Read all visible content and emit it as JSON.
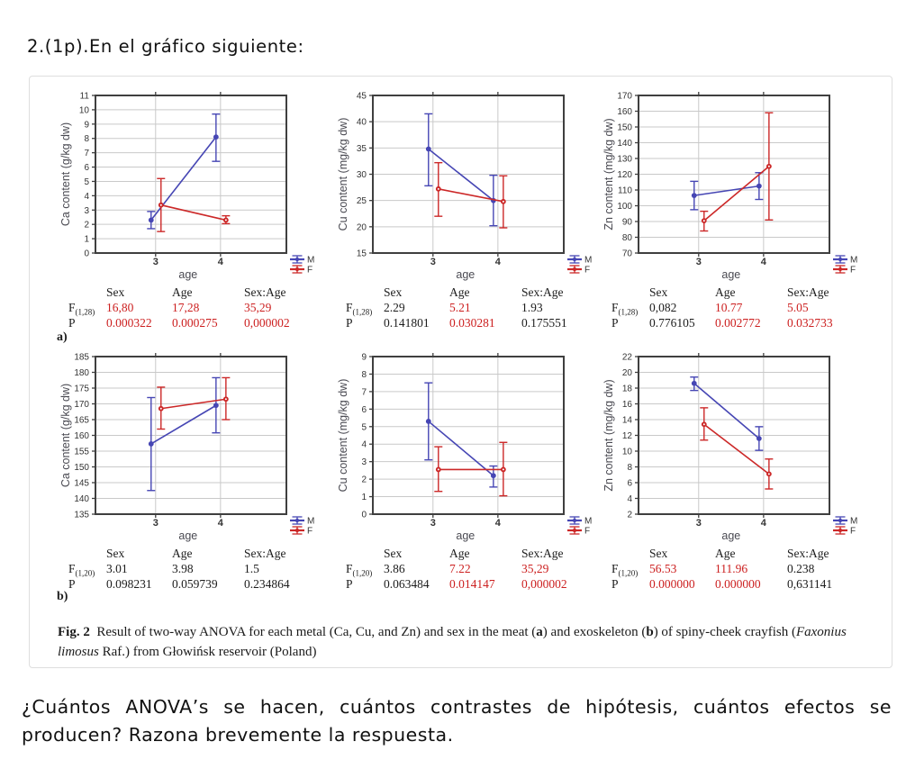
{
  "heading": "2.(1p).En el gráfico siguiente:",
  "figure": {
    "panel_a": "a)",
    "panel_b": "b)",
    "legend": {
      "male_label": "M",
      "female_label": "F"
    },
    "colors": {
      "male": "#4646b4",
      "female": "#cc2828",
      "grid": "#c9c9c9",
      "axis_box": "#3f3f3f",
      "tick_text": "#333333",
      "axis_title": "#4a4a52",
      "significant_red": "#cc1f1f"
    },
    "caption_segments": [
      {
        "t": "Fig. 2",
        "b": true
      },
      {
        "t": "  Result of two-way ANOVA for each metal (Ca, Cu, and Zn) and sex in the meat ("
      },
      {
        "t": "a",
        "b": true
      },
      {
        "t": ") and exoskeleton ("
      },
      {
        "t": "b",
        "b": true
      },
      {
        "t": ") of spiny-cheek crayfish ("
      },
      {
        "t": "Faxonius limosus",
        "i": true
      },
      {
        "t": " Raf.) from Głowińsk reservoir (Poland)"
      }
    ]
  },
  "question": {
    "line1": "¿Cuántos ANOVA’s se hacen, cuántos contrastes de hipótesis, cuántos efectos se",
    "line2": "producen? Razona brevemente la respuesta."
  },
  "chart_data": [
    {
      "type": "line",
      "panel": "a",
      "id": "ca-meat",
      "ylabel": "Ca content (g/kg dw)",
      "xlabel": "age",
      "ylim": [
        0,
        11
      ],
      "ystep": 1,
      "xticks": [
        "3",
        "4"
      ],
      "series": [
        {
          "name": "M",
          "points": [
            {
              "x": 3,
              "y": 2.3,
              "lo": 1.7,
              "hi": 2.9
            },
            {
              "x": 4,
              "y": 8.1,
              "lo": 6.4,
              "hi": 9.7
            }
          ]
        },
        {
          "name": "F",
          "points": [
            {
              "x": 3,
              "y": 3.35,
              "lo": 1.5,
              "hi": 5.2
            },
            {
              "x": 4,
              "y": 2.3,
              "lo": 2.05,
              "hi": 2.6
            }
          ]
        }
      ],
      "stats": {
        "flabel": "F",
        "fsub": "(1,28)",
        "plabel": "P",
        "cols": [
          {
            "header": "Sex",
            "f": "16,80",
            "fred": true,
            "p": "0.000322",
            "pred": true
          },
          {
            "header": "Age",
            "f": "17,28",
            "fred": true,
            "p": "0.000275",
            "pred": true
          },
          {
            "header": "Sex:Age",
            "f": "35,29",
            "fred": true,
            "p": "0,000002",
            "pred": true
          }
        ]
      }
    },
    {
      "type": "line",
      "panel": "a",
      "id": "cu-meat",
      "ylabel": "Cu content (mg/kg dw)",
      "xlabel": "age",
      "ylim": [
        15,
        45
      ],
      "ystep": 5,
      "xticks": [
        "3",
        "4"
      ],
      "series": [
        {
          "name": "M",
          "points": [
            {
              "x": 3,
              "y": 34.8,
              "lo": 27.8,
              "hi": 41.5
            },
            {
              "x": 4,
              "y": 25.0,
              "lo": 20.2,
              "hi": 29.8
            }
          ]
        },
        {
          "name": "F",
          "points": [
            {
              "x": 3,
              "y": 27.2,
              "lo": 22.0,
              "hi": 32.2
            },
            {
              "x": 4,
              "y": 24.8,
              "lo": 19.8,
              "hi": 29.7
            }
          ]
        }
      ],
      "stats": {
        "flabel": "F",
        "fsub": "(1,28)",
        "plabel": "P",
        "cols": [
          {
            "header": "Sex",
            "f": "2.29",
            "fred": false,
            "p": "0.141801",
            "pred": false
          },
          {
            "header": "Age",
            "f": "5.21",
            "fred": true,
            "p": "0.030281",
            "pred": true
          },
          {
            "header": "Sex:Age",
            "f": "1.93",
            "fred": false,
            "p": "0.175551",
            "pred": false
          }
        ]
      }
    },
    {
      "type": "line",
      "panel": "a",
      "id": "zn-meat",
      "ylabel": "Zn content (mg/kg dw)",
      "xlabel": "age",
      "ylim": [
        70,
        170
      ],
      "ystep": 10,
      "xticks": [
        "3",
        "4"
      ],
      "series": [
        {
          "name": "M",
          "points": [
            {
              "x": 3,
              "y": 106.5,
              "lo": 97.5,
              "hi": 115.5
            },
            {
              "x": 4,
              "y": 112.5,
              "lo": 104,
              "hi": 121
            }
          ]
        },
        {
          "name": "F",
          "points": [
            {
              "x": 3,
              "y": 90.5,
              "lo": 84,
              "hi": 96.5
            },
            {
              "x": 4,
              "y": 125,
              "lo": 91,
              "hi": 159
            }
          ]
        }
      ],
      "stats": {
        "flabel": "F",
        "fsub": "(1,28)",
        "plabel": "P",
        "cols": [
          {
            "header": "Sex",
            "f": "0,082",
            "fred": false,
            "p": "0.776105",
            "pred": false
          },
          {
            "header": "Age",
            "f": "10.77",
            "fred": true,
            "p": "0.002772",
            "pred": true
          },
          {
            "header": "Sex:Age",
            "f": "5.05",
            "fred": true,
            "p": "0.032733",
            "pred": true
          }
        ]
      }
    },
    {
      "type": "line",
      "panel": "b",
      "id": "ca-exoskeleton",
      "ylabel": "Ca content (g/kg dw)",
      "xlabel": "age",
      "ylim": [
        135,
        185
      ],
      "ystep": 5,
      "xticks": [
        "3",
        "4"
      ],
      "series": [
        {
          "name": "M",
          "points": [
            {
              "x": 3,
              "y": 157.3,
              "lo": 142.5,
              "hi": 172
            },
            {
              "x": 4,
              "y": 169.5,
              "lo": 160.8,
              "hi": 178.3
            }
          ]
        },
        {
          "name": "F",
          "points": [
            {
              "x": 3,
              "y": 168.5,
              "lo": 162,
              "hi": 175.3
            },
            {
              "x": 4,
              "y": 171.5,
              "lo": 165,
              "hi": 178.3
            }
          ]
        }
      ],
      "stats": {
        "flabel": "F",
        "fsub": "(1,20)",
        "plabel": "P",
        "cols": [
          {
            "header": "Sex",
            "f": "3.01",
            "fred": false,
            "p": "0.098231",
            "pred": false
          },
          {
            "header": "Age",
            "f": "3.98",
            "fred": false,
            "p": "0.059739",
            "pred": false
          },
          {
            "header": "Sex:Age",
            "f": "1.5",
            "fred": false,
            "p": "0.234864",
            "pred": false
          }
        ]
      }
    },
    {
      "type": "line",
      "panel": "b",
      "id": "cu-exoskeleton",
      "ylabel": "Cu content (mg/kg dw)",
      "xlabel": "age",
      "ylim": [
        0,
        9
      ],
      "ystep": 1,
      "xticks": [
        "3",
        "4"
      ],
      "series": [
        {
          "name": "M",
          "points": [
            {
              "x": 3,
              "y": 5.3,
              "lo": 3.1,
              "hi": 7.5
            },
            {
              "x": 4,
              "y": 2.2,
              "lo": 1.55,
              "hi": 2.75
            }
          ]
        },
        {
          "name": "F",
          "points": [
            {
              "x": 3,
              "y": 2.55,
              "lo": 1.3,
              "hi": 3.85
            },
            {
              "x": 4,
              "y": 2.55,
              "lo": 1.05,
              "hi": 4.1
            }
          ]
        }
      ],
      "stats": {
        "flabel": "F",
        "fsub": "(1,20)",
        "plabel": "P",
        "cols": [
          {
            "header": "Sex",
            "f": "3.86",
            "fred": false,
            "p": "0.063484",
            "pred": false
          },
          {
            "header": "Age",
            "f": "7.22",
            "fred": true,
            "p": "0.014147",
            "pred": true
          },
          {
            "header": "Sex:Age",
            "f": "35,29",
            "fred": true,
            "p": "0,000002",
            "pred": true
          }
        ]
      }
    },
    {
      "type": "line",
      "panel": "b",
      "id": "zn-exoskeleton",
      "ylabel": "Zn content (mg/kg dw)",
      "xlabel": "age",
      "ylim": [
        2,
        22
      ],
      "ystep": 2,
      "xticks": [
        "3",
        "4"
      ],
      "series": [
        {
          "name": "M",
          "points": [
            {
              "x": 3,
              "y": 18.6,
              "lo": 17.7,
              "hi": 19.4
            },
            {
              "x": 4,
              "y": 11.6,
              "lo": 10.1,
              "hi": 13.1
            }
          ]
        },
        {
          "name": "F",
          "points": [
            {
              "x": 3,
              "y": 13.4,
              "lo": 11.4,
              "hi": 15.5
            },
            {
              "x": 4,
              "y": 7.1,
              "lo": 5.2,
              "hi": 9.0
            }
          ]
        }
      ],
      "stats": {
        "flabel": "F",
        "fsub": "(1,20)",
        "plabel": "P",
        "cols": [
          {
            "header": "Sex",
            "f": "56.53",
            "fred": true,
            "p": "0.000000",
            "pred": true
          },
          {
            "header": "Age",
            "f": "111.96",
            "fred": true,
            "p": "0.000000",
            "pred": true
          },
          {
            "header": "Sex:Age",
            "f": "0.238",
            "fred": false,
            "p": "0,631141",
            "pred": false
          }
        ]
      }
    }
  ]
}
